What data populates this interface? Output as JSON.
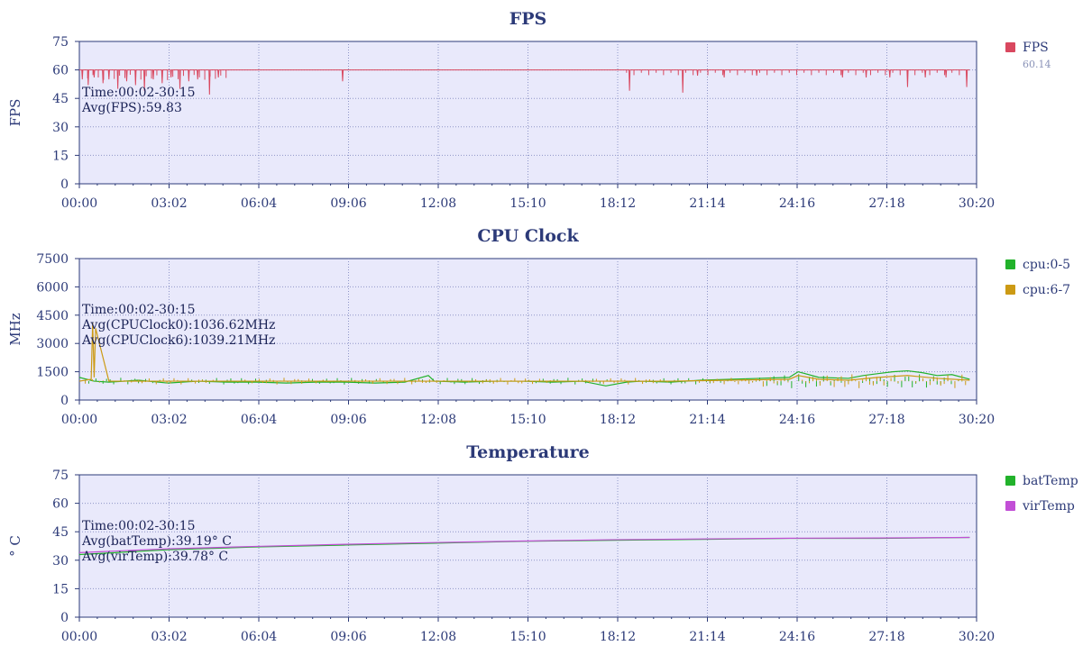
{
  "chart_data": [
    {
      "type": "line",
      "title": "FPS",
      "ylabel": "FPS",
      "ylim": [
        0,
        75
      ],
      "yticks": [
        "0",
        "15",
        "30",
        "45",
        "60",
        "75"
      ],
      "xticks": [
        "00:00",
        "03:02",
        "06:04",
        "09:06",
        "12:08",
        "15:10",
        "18:12",
        "21:14",
        "24:16",
        "27:18",
        "30:20"
      ],
      "grid": true,
      "legend": "right",
      "annotations": [
        "Time:00:02-30:15",
        "Avg(FPS):59.83"
      ],
      "series": [
        {
          "name": "FPS",
          "legend_value": "60.14",
          "color": "#d9485f",
          "baseline": 60,
          "dips": [
            [
              0.1,
              55
            ],
            [
              0.3,
              52
            ],
            [
              0.5,
              56
            ],
            [
              0.8,
              53
            ],
            [
              1.0,
              55
            ],
            [
              1.3,
              50
            ],
            [
              1.6,
              54
            ],
            [
              1.9,
              52
            ],
            [
              2.2,
              49
            ],
            [
              2.5,
              55
            ],
            [
              2.8,
              53
            ],
            [
              3.1,
              56
            ],
            [
              3.4,
              50
            ],
            [
              3.7,
              54
            ],
            [
              4.0,
              55
            ],
            [
              4.4,
              47
            ],
            [
              4.7,
              56
            ],
            [
              8.9,
              54
            ],
            [
              18.6,
              49
            ],
            [
              20.4,
              48
            ],
            [
              20.9,
              57
            ],
            [
              21.8,
              56
            ],
            [
              22.9,
              57
            ],
            [
              25.8,
              56
            ],
            [
              26.6,
              56
            ],
            [
              27.4,
              56
            ],
            [
              28.0,
              51
            ],
            [
              28.6,
              56
            ],
            [
              29.3,
              56
            ],
            [
              30.0,
              51
            ]
          ]
        }
      ]
    },
    {
      "type": "line",
      "title": "CPU Clock",
      "ylabel": "MHz",
      "ylim": [
        0,
        7500
      ],
      "yticks": [
        "0",
        "1500",
        "3000",
        "4500",
        "6000",
        "7500"
      ],
      "xticks": [
        "00:00",
        "03:02",
        "06:04",
        "09:06",
        "12:08",
        "15:10",
        "18:12",
        "21:14",
        "24:16",
        "27:18",
        "30:20"
      ],
      "grid": true,
      "legend": "right",
      "annotations": [
        "Time:00:02-30:15",
        "Avg(CPUClock0):1036.62MHz",
        "Avg(CPUClock6):1039.21MHz"
      ],
      "series": [
        {
          "name": "cpu:0-5",
          "color": "#22b22b",
          "x": [
            0,
            0.5,
            1,
            2,
            3,
            4,
            5,
            6,
            7,
            8,
            9,
            10,
            11,
            11.8,
            12,
            13,
            14,
            15,
            16,
            17,
            17.8,
            18.5,
            19,
            20,
            20.5,
            21,
            22,
            23,
            24,
            24.3,
            25,
            26,
            26.5,
            27,
            27.5,
            28,
            28.5,
            29,
            29.5,
            30.1
          ],
          "values": [
            1200,
            1000,
            950,
            1050,
            900,
            1000,
            950,
            950,
            900,
            950,
            950,
            900,
            950,
            1300,
            1000,
            950,
            1000,
            1000,
            950,
            1000,
            750,
            950,
            1000,
            950,
            1000,
            1050,
            1100,
            1150,
            1200,
            1500,
            1200,
            1150,
            1300,
            1400,
            1500,
            1550,
            1450,
            1300,
            1350,
            1100
          ]
        },
        {
          "name": "cpu:6-7",
          "color": "#cc9a14",
          "x": [
            0,
            0.4,
            0.45,
            0.5,
            0.55,
            1,
            2,
            5,
            10,
            15,
            20,
            22,
            24,
            24.3,
            25,
            26,
            27,
            28,
            29,
            30.1
          ],
          "values": [
            1000,
            1100,
            4100,
            1200,
            3800,
            1000,
            1000,
            1000,
            1000,
            1000,
            1000,
            1050,
            1100,
            1300,
            1100,
            1050,
            1200,
            1300,
            1150,
            1050
          ]
        }
      ]
    },
    {
      "type": "line",
      "title": "Temperature",
      "ylabel": "° C",
      "ylim": [
        0,
        75
      ],
      "yticks": [
        "0",
        "15",
        "30",
        "45",
        "60",
        "75"
      ],
      "xticks": [
        "00:00",
        "03:02",
        "06:04",
        "09:06",
        "12:08",
        "15:10",
        "18:12",
        "21:14",
        "24:16",
        "27:18",
        "30:20"
      ],
      "grid": true,
      "legend": "right",
      "annotations": [
        "Time:00:02-30:15",
        "Avg(batTemp):39.19° C",
        "Avg(virTemp):39.78° C"
      ],
      "series": [
        {
          "name": "batTemp",
          "color": "#22b22b",
          "x": [
            0,
            3,
            6,
            9,
            12,
            15,
            18,
            21,
            24,
            27,
            30.1
          ],
          "values": [
            33,
            35.5,
            37,
            38,
            39,
            40,
            40.5,
            41,
            41.5,
            41.5,
            42
          ]
        },
        {
          "name": "virTemp",
          "color": "#c24fd6",
          "x": [
            0,
            3,
            6,
            9,
            12,
            15,
            18,
            21,
            24,
            27,
            30.1
          ],
          "values": [
            34,
            36,
            37.3,
            38.4,
            39.3,
            40.1,
            40.8,
            41.2,
            41.6,
            41.7,
            42
          ]
        }
      ]
    }
  ]
}
